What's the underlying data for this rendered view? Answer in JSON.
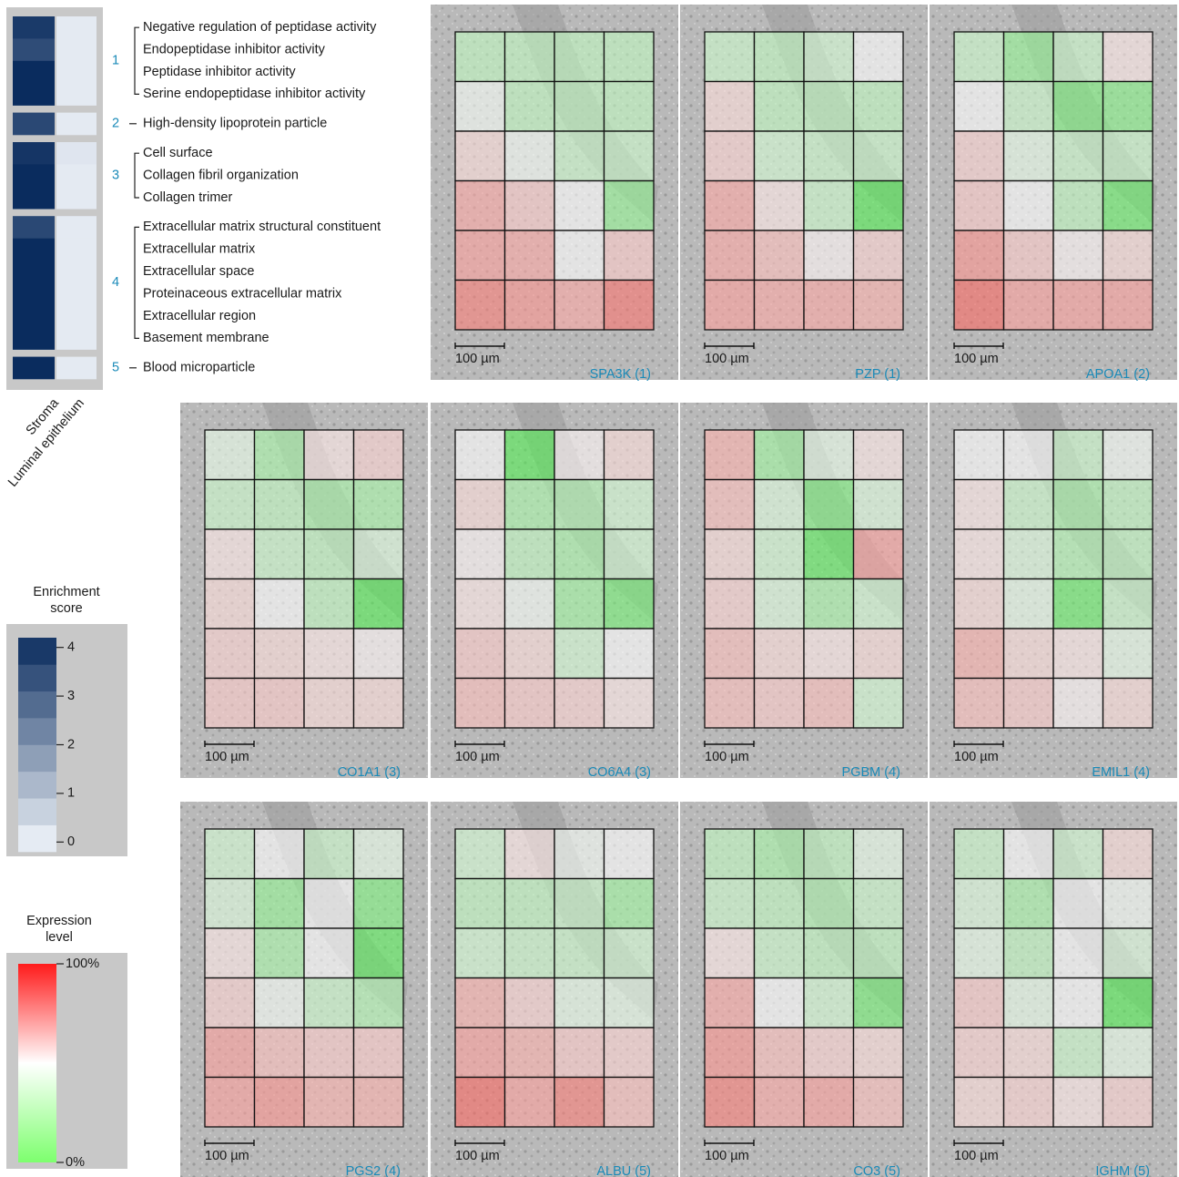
{
  "enrichment": {
    "groups": [
      {
        "number": "1",
        "terms": [
          "Negative regulation of peptidase activity",
          "Endopeptidase inhibitor activity",
          "Peptidase inhibitor activity",
          "Serine endopeptidase inhibitor activity"
        ],
        "stroma": [
          3.9,
          3.5,
          4.2,
          4.2
        ],
        "epithelium": [
          0.1,
          0.1,
          0.1,
          0.1
        ]
      },
      {
        "number": "2",
        "terms": [
          "High-density lipoprotein particle"
        ],
        "stroma": [
          3.6
        ],
        "epithelium": [
          0.1
        ]
      },
      {
        "number": "3",
        "terms": [
          "Cell surface",
          "Collagen fibril organization",
          "Collagen trimer"
        ],
        "stroma": [
          4.0,
          4.2,
          4.2
        ],
        "epithelium": [
          0.2,
          0.1,
          0.1
        ]
      },
      {
        "number": "4",
        "terms": [
          "Extracellular matrix structural constituent",
          "Extracellular matrix",
          "Extracellular space",
          "Proteinaceous extracellular matrix",
          "Extracellular region",
          "Basement membrane"
        ],
        "stroma": [
          3.6,
          4.2,
          4.2,
          4.2,
          4.2,
          4.2
        ],
        "epithelium": [
          0.1,
          0.1,
          0.1,
          0.1,
          0.1,
          0.1
        ]
      },
      {
        "number": "5",
        "terms": [
          "Blood microparticle"
        ],
        "stroma": [
          4.2
        ],
        "epithelium": [
          0.1
        ]
      }
    ],
    "column_labels": [
      "Stroma",
      "Luminal epithelium"
    ]
  },
  "enrichment_legend": {
    "title": [
      "Enrichment",
      "score"
    ],
    "lim": [
      -0.2,
      4.2
    ],
    "ticks": [
      0,
      1,
      2,
      3,
      4
    ]
  },
  "expression_legend": {
    "title": [
      "Expression",
      "level"
    ],
    "lim": [
      0,
      100
    ],
    "ticks": [
      {
        "value": 0,
        "label": "0%"
      },
      {
        "value": 100,
        "label": "100%"
      }
    ]
  },
  "scale_bar": "100 µm",
  "panels": [
    {
      "label": "SPA3K (1)",
      "grid": [
        [
          35,
          35,
          35,
          35
        ],
        [
          48,
          35,
          35,
          35
        ],
        [
          58,
          48,
          38,
          38
        ],
        [
          70,
          62,
          50,
          25
        ],
        [
          72,
          70,
          50,
          62
        ],
        [
          80,
          75,
          70,
          82
        ]
      ]
    },
    {
      "label": "PZP (1)",
      "grid": [
        [
          38,
          35,
          40,
          50
        ],
        [
          58,
          35,
          35,
          35
        ],
        [
          60,
          40,
          38,
          38
        ],
        [
          70,
          55,
          38,
          10
        ],
        [
          70,
          65,
          52,
          60
        ],
        [
          72,
          70,
          70,
          68
        ]
      ]
    },
    {
      "label": "APOA1 (2)",
      "grid": [
        [
          38,
          25,
          38,
          55
        ],
        [
          50,
          38,
          20,
          22
        ],
        [
          60,
          45,
          38,
          38
        ],
        [
          62,
          50,
          35,
          15
        ],
        [
          75,
          62,
          52,
          58
        ],
        [
          85,
          72,
          72,
          72
        ]
      ]
    },
    {
      "label": "CO1A1 (3)",
      "grid": [
        [
          45,
          30,
          55,
          60
        ],
        [
          38,
          35,
          30,
          30
        ],
        [
          55,
          38,
          35,
          42
        ],
        [
          58,
          50,
          35,
          10
        ],
        [
          60,
          58,
          55,
          52
        ],
        [
          62,
          62,
          58,
          58
        ]
      ]
    },
    {
      "label": "CO6A4 (3)",
      "grid": [
        [
          50,
          10,
          52,
          58
        ],
        [
          58,
          30,
          32,
          40
        ],
        [
          52,
          35,
          30,
          40
        ],
        [
          55,
          48,
          28,
          18
        ],
        [
          62,
          58,
          40,
          50
        ],
        [
          65,
          62,
          60,
          55
        ]
      ]
    },
    {
      "label": "PGBM (4)",
      "grid": [
        [
          68,
          28,
          45,
          55
        ],
        [
          65,
          42,
          20,
          42
        ],
        [
          58,
          40,
          12,
          72
        ],
        [
          60,
          42,
          30,
          40
        ],
        [
          65,
          58,
          55,
          58
        ],
        [
          65,
          62,
          65,
          40
        ]
      ]
    },
    {
      "label": "EMIL1 (4)",
      "grid": [
        [
          50,
          50,
          38,
          48
        ],
        [
          55,
          38,
          30,
          35
        ],
        [
          55,
          42,
          32,
          35
        ],
        [
          58,
          45,
          15,
          38
        ],
        [
          68,
          58,
          55,
          45
        ],
        [
          65,
          62,
          52,
          58
        ]
      ]
    },
    {
      "label": "PGS2 (4)",
      "grid": [
        [
          40,
          50,
          38,
          45
        ],
        [
          42,
          25,
          50,
          20
        ],
        [
          55,
          30,
          50,
          12
        ],
        [
          60,
          48,
          38,
          32
        ],
        [
          72,
          65,
          62,
          62
        ],
        [
          72,
          75,
          68,
          68
        ]
      ]
    },
    {
      "label": "ALBU (5)",
      "grid": [
        [
          40,
          55,
          48,
          50
        ],
        [
          35,
          35,
          38,
          28
        ],
        [
          40,
          38,
          38,
          40
        ],
        [
          68,
          60,
          45,
          45
        ],
        [
          72,
          68,
          62,
          60
        ],
        [
          85,
          72,
          80,
          65
        ]
      ]
    },
    {
      "label": "CO3 (5)",
      "grid": [
        [
          35,
          30,
          35,
          45
        ],
        [
          38,
          35,
          32,
          38
        ],
        [
          55,
          38,
          35,
          35
        ],
        [
          70,
          50,
          40,
          18
        ],
        [
          75,
          65,
          60,
          58
        ],
        [
          80,
          70,
          72,
          65
        ]
      ]
    },
    {
      "label": "IGHM (5)",
      "grid": [
        [
          38,
          50,
          40,
          58
        ],
        [
          42,
          30,
          50,
          48
        ],
        [
          45,
          35,
          50,
          42
        ],
        [
          62,
          45,
          50,
          10
        ],
        [
          60,
          58,
          38,
          45
        ],
        [
          58,
          60,
          55,
          60
        ]
      ]
    }
  ]
}
